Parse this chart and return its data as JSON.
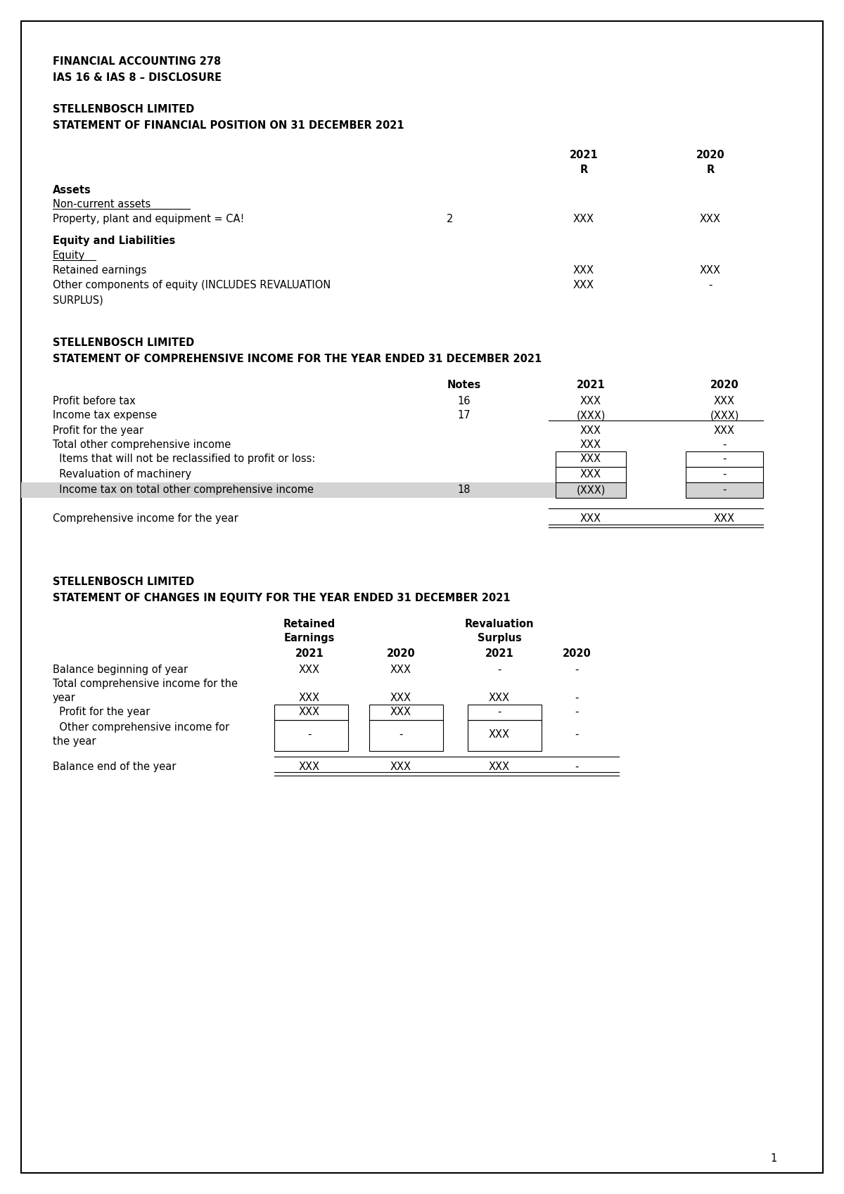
{
  "page_title_line1": "FINANCIAL ACCOUNTING 278",
  "page_title_line2": "IAS 16 & IAS 8 – DISCLOSURE",
  "section1_title_line1": "STELLENBOSCH LIMITED",
  "section1_title_line2": "STATEMENT OF FINANCIAL POSITION ON 31 DECEMBER 2021",
  "col_2021": "2021",
  "col_2020": "2020",
  "col_R": "R",
  "assets_label": "Assets",
  "non_current_assets_label": "Non-current assets",
  "ppe_label": "Property, plant and equipment = CA!",
  "ppe_note": "2",
  "ppe_2021": "XXX",
  "ppe_2020": "XXX",
  "eq_liab_label": "Equity and Liabilities",
  "equity_label": "Equity",
  "retained_earnings_label": "Retained earnings",
  "retained_earnings_2021": "XXX",
  "retained_earnings_2020": "XXX",
  "other_comp_line1": "Other components of equity (INCLUDES REVALUATION",
  "other_comp_line2": "SURPLUS)",
  "other_components_2021": "XXX",
  "other_components_2020": "-",
  "section2_title_line1": "STELLENBOSCH LIMITED",
  "section2_title_line2": "STATEMENT OF COMPREHENSIVE INCOME FOR THE YEAR ENDED 31 DECEMBER 2021",
  "notes_label": "Notes",
  "profit_before_tax_label": "Profit before tax",
  "profit_before_tax_note": "16",
  "profit_before_tax_2021": "XXX",
  "profit_before_tax_2020": "XXX",
  "income_tax_expense_label": "Income tax expense",
  "income_tax_expense_note": "17",
  "income_tax_expense_2021": "(XXX)",
  "income_tax_expense_2020": "(XXX)",
  "profit_for_year_label": "Profit for the year",
  "profit_for_year_2021": "XXX",
  "profit_for_year_2020": "XXX",
  "total_other_ci_label": "Total other comprehensive income",
  "total_other_ci_2021": "XXX",
  "total_other_ci_2020": "-",
  "items_not_reclassified_label": "  Items that will not be reclassified to profit or loss:",
  "items_not_reclassified_2021": "XXX",
  "items_not_reclassified_2020": "-",
  "revaluation_label": "  Revaluation of machinery",
  "revaluation_2021": "XXX",
  "revaluation_2020": "-",
  "income_tax_oci_label": "  Income tax on total other comprehensive income",
  "income_tax_oci_note": "18",
  "income_tax_oci_2021": "(XXX)",
  "income_tax_oci_2020": "-",
  "comprehensive_income_label": "Comprehensive income for the year",
  "comprehensive_income_2021": "XXX",
  "comprehensive_income_2020": "XXX",
  "section3_title_line1": "STELLENBOSCH LIMITED",
  "section3_title_line2": "STATEMENT OF CHANGES IN EQUITY FOR THE YEAR ENDED 31 DECEMBER 2021",
  "equity_col1_line1": "Retained",
  "equity_col1_line2": "Earnings",
  "equity_col2_line1": "Revaluation",
  "equity_col2_line2": "Surplus",
  "equity_sub_2021": "2021",
  "equity_sub_2020": "2020",
  "equity_sub_rev_2021": "2021",
  "equity_sub_rev_2020": "2020",
  "balance_beg_label": "Balance beginning of year",
  "balance_beg_re_2021": "XXX",
  "balance_beg_re_2020": "XXX",
  "balance_beg_rev_2021": "-",
  "balance_beg_rev_2020": "-",
  "total_ci_line1": "Total comprehensive income for the",
  "total_ci_line2": "year",
  "total_ci_re_2021": "XXX",
  "total_ci_re_2020": "XXX",
  "total_ci_rev_2021": "XXX",
  "total_ci_rev_2020": "-",
  "profit_year_label": "  Profit for the year",
  "profit_year_re_2021": "XXX",
  "profit_year_re_2020": "XXX",
  "profit_year_rev_2021": "-",
  "profit_year_rev_2020": "-",
  "other_ci_line1": "  Other comprehensive income for",
  "other_ci_line2": "the year",
  "other_ci_re_2021": "-",
  "other_ci_re_2020": "-",
  "other_ci_rev_2021": "XXX",
  "other_ci_rev_2020": "-",
  "balance_end_label": "Balance end of the year",
  "balance_end_re_2021": "XXX",
  "balance_end_re_2020": "XXX",
  "balance_end_rev_2021": "XXX",
  "balance_end_rev_2020": "-",
  "page_number": "1",
  "bg_color": "#ffffff",
  "border_color": "#000000",
  "text_color": "#000000",
  "gray_bg": "#d3d3d3"
}
